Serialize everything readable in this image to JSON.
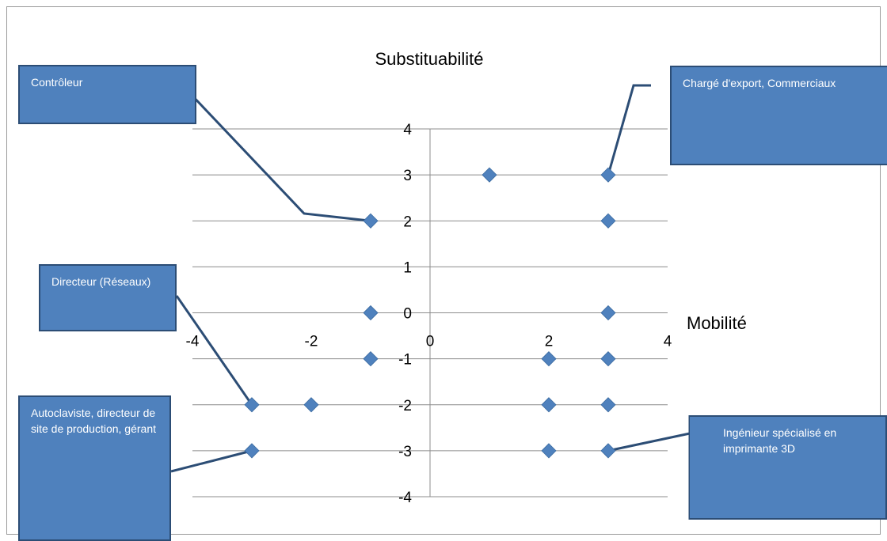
{
  "chart_data": {
    "type": "scatter",
    "xlabel": "Mobilité",
    "ylabel": "Substituabilité",
    "xlim": [
      -4,
      4
    ],
    "ylim": [
      -4,
      4
    ],
    "xticks": [
      "-4",
      "-2",
      "0",
      "2",
      "4"
    ],
    "yticks": [
      "-4",
      "-3",
      "-2",
      "-1",
      "0",
      "1",
      "2",
      "3",
      "4"
    ],
    "grid": "horizontal",
    "marker": "diamond",
    "marker_color": "#4f81bd",
    "points": [
      {
        "x": 1,
        "y": 3
      },
      {
        "x": 3,
        "y": 3
      },
      {
        "x": -1,
        "y": 2
      },
      {
        "x": 3,
        "y": 2
      },
      {
        "x": -1,
        "y": 0
      },
      {
        "x": 3,
        "y": 0
      },
      {
        "x": -1,
        "y": -1
      },
      {
        "x": 2,
        "y": -1
      },
      {
        "x": 3,
        "y": -1
      },
      {
        "x": -3,
        "y": -2
      },
      {
        "x": -2,
        "y": -2
      },
      {
        "x": 2,
        "y": -2
      },
      {
        "x": 3,
        "y": -2
      },
      {
        "x": -3,
        "y": -3
      },
      {
        "x": 2,
        "y": -3
      },
      {
        "x": 3,
        "y": -3
      }
    ],
    "callouts": [
      {
        "text": "Contrôleur",
        "point": [
          -1,
          2
        ]
      },
      {
        "text": "Chargé d'export, Commerciaux",
        "point": [
          3,
          3
        ]
      },
      {
        "text": "Directeur (Réseaux)",
        "point": [
          -3,
          -2
        ]
      },
      {
        "text": "Autoclaviste, directeur de site de production, gérant",
        "point": [
          -3,
          -3
        ]
      },
      {
        "text": "Ingénieur spécialisé en imprimante 3D",
        "point": [
          3,
          -3
        ]
      }
    ],
    "callout_color": "#4f81bd"
  }
}
